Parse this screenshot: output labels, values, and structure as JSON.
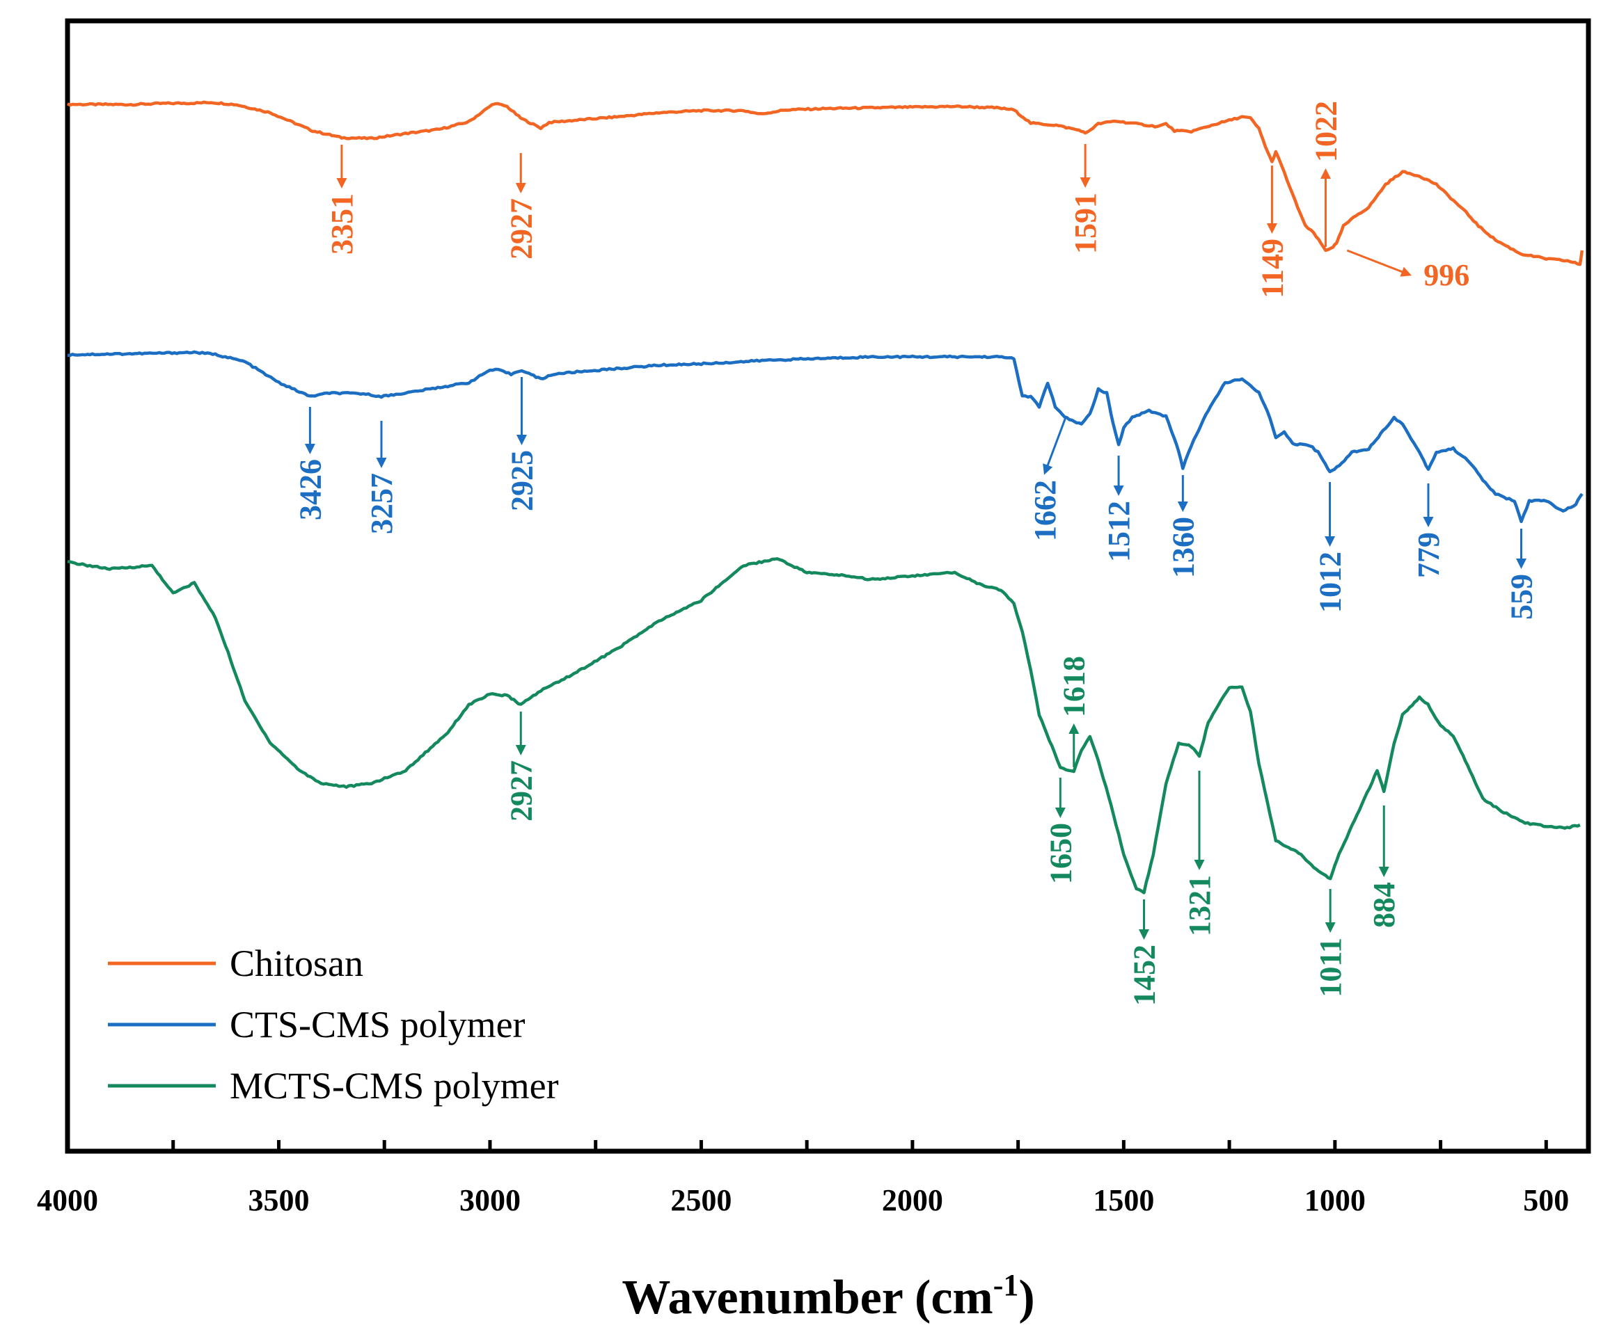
{
  "chart_data": {
    "type": "line",
    "title": "",
    "xlabel_main": "Wavenumber (cm",
    "xlabel_sup": "-1",
    "xlabel_close": ")",
    "xlim": [
      4000,
      400
    ],
    "ylabel": "",
    "xticks": [
      {
        "value": 4000,
        "label": "4000"
      },
      {
        "value": 3500,
        "label": "3500"
      },
      {
        "value": 3000,
        "label": "3000"
      },
      {
        "value": 2500,
        "label": "2500"
      },
      {
        "value": 2000,
        "label": "2000"
      },
      {
        "value": 1500,
        "label": "1500"
      },
      {
        "value": 1000,
        "label": "1000"
      },
      {
        "value": 500,
        "label": "500"
      }
    ],
    "legend_position": "bottom-left",
    "series": [
      {
        "name": "Chitosan",
        "color": "#F26522",
        "points": [
          [
            4000,
            0.0
          ],
          [
            3850,
            -0.3
          ],
          [
            3780,
            1.2
          ],
          [
            3700,
            1.8
          ],
          [
            3660,
            2.8
          ],
          [
            3600,
            -0.5
          ],
          [
            3520,
            -12
          ],
          [
            3420,
            -38
          ],
          [
            3351,
            -48
          ],
          [
            3280,
            -49
          ],
          [
            3200,
            -42
          ],
          [
            3120,
            -36
          ],
          [
            3050,
            -25
          ],
          [
            2990,
            1.5
          ],
          [
            2960,
            -3
          ],
          [
            2927,
            -20
          ],
          [
            2880,
            -34
          ],
          [
            2860,
            -26
          ],
          [
            2800,
            -23
          ],
          [
            2700,
            -18
          ],
          [
            2600,
            -12
          ],
          [
            2500,
            -9
          ],
          [
            2400,
            -9
          ],
          [
            2360,
            -14
          ],
          [
            2300,
            -8
          ],
          [
            2200,
            -6
          ],
          [
            2100,
            -5
          ],
          [
            2000,
            -4
          ],
          [
            1900,
            -3
          ],
          [
            1800,
            -5
          ],
          [
            1760,
            -8
          ],
          [
            1720,
            -27
          ],
          [
            1660,
            -30
          ],
          [
            1600,
            -38
          ],
          [
            1591,
            -42
          ],
          [
            1560,
            -28
          ],
          [
            1520,
            -24
          ],
          [
            1470,
            -28
          ],
          [
            1420,
            -32
          ],
          [
            1400,
            -28
          ],
          [
            1380,
            -38
          ],
          [
            1340,
            -39
          ],
          [
            1280,
            -28
          ],
          [
            1220,
            -18
          ],
          [
            1200,
            -20
          ],
          [
            1180,
            -35
          ],
          [
            1165,
            -60
          ],
          [
            1149,
            -83
          ],
          [
            1140,
            -68
          ],
          [
            1120,
            -98
          ],
          [
            1100,
            -130
          ],
          [
            1070,
            -175
          ],
          [
            1050,
            -185
          ],
          [
            1022,
            -210
          ],
          [
            1005,
            -205
          ],
          [
            996,
            -200
          ],
          [
            980,
            -175
          ],
          [
            950,
            -160
          ],
          [
            920,
            -148
          ],
          [
            880,
            -115
          ],
          [
            840,
            -97
          ],
          [
            800,
            -103
          ],
          [
            760,
            -115
          ],
          [
            720,
            -138
          ],
          [
            690,
            -155
          ],
          [
            660,
            -175
          ],
          [
            620,
            -195
          ],
          [
            560,
            -215
          ],
          [
            500,
            -222
          ],
          [
            450,
            -225
          ],
          [
            420,
            -230
          ],
          [
            415,
            -210
          ]
        ],
        "annotations": [
          {
            "label": "3351",
            "x": 3351
          },
          {
            "label": "2927",
            "x": 2927
          },
          {
            "label": "1591",
            "x": 1591
          },
          {
            "label": "1149",
            "x": 1149
          },
          {
            "label": "1022",
            "x": 1022
          },
          {
            "label": "996",
            "x": 996
          }
        ]
      },
      {
        "name": "CTS-CMS polymer",
        "color": "#1B6EC2",
        "points": [
          [
            4000,
            0.0
          ],
          [
            3900,
            1.0
          ],
          [
            3800,
            2.0
          ],
          [
            3700,
            3.5
          ],
          [
            3650,
            0.5
          ],
          [
            3580,
            -10
          ],
          [
            3500,
            -40
          ],
          [
            3426,
            -60
          ],
          [
            3380,
            -55
          ],
          [
            3300,
            -56
          ],
          [
            3257,
            -60
          ],
          [
            3200,
            -55
          ],
          [
            3100,
            -45
          ],
          [
            3050,
            -40
          ],
          [
            3000,
            -22
          ],
          [
            2980,
            -22
          ],
          [
            2950,
            -28
          ],
          [
            2925,
            -22
          ],
          [
            2880,
            -35
          ],
          [
            2850,
            -28
          ],
          [
            2800,
            -25
          ],
          [
            2700,
            -20
          ],
          [
            2600,
            -15
          ],
          [
            2500,
            -13
          ],
          [
            2400,
            -10
          ],
          [
            2350,
            -8
          ],
          [
            2300,
            -7
          ],
          [
            2200,
            -5
          ],
          [
            2100,
            -3
          ],
          [
            2000,
            -3
          ],
          [
            1900,
            -3
          ],
          [
            1800,
            -3
          ],
          [
            1760,
            -5
          ],
          [
            1740,
            -60
          ],
          [
            1720,
            -60
          ],
          [
            1700,
            -75
          ],
          [
            1680,
            -40
          ],
          [
            1662,
            -75
          ],
          [
            1640,
            -90
          ],
          [
            1600,
            -100
          ],
          [
            1580,
            -85
          ],
          [
            1560,
            -50
          ],
          [
            1540,
            -55
          ],
          [
            1525,
            -100
          ],
          [
            1512,
            -130
          ],
          [
            1500,
            -105
          ],
          [
            1480,
            -90
          ],
          [
            1440,
            -80
          ],
          [
            1420,
            -85
          ],
          [
            1400,
            -88
          ],
          [
            1380,
            -120
          ],
          [
            1365,
            -150
          ],
          [
            1360,
            -163
          ],
          [
            1340,
            -130
          ],
          [
            1300,
            -80
          ],
          [
            1260,
            -40
          ],
          [
            1220,
            -35
          ],
          [
            1200,
            -45
          ],
          [
            1180,
            -55
          ],
          [
            1160,
            -80
          ],
          [
            1140,
            -120
          ],
          [
            1120,
            -110
          ],
          [
            1100,
            -128
          ],
          [
            1060,
            -130
          ],
          [
            1040,
            -140
          ],
          [
            1012,
            -168
          ],
          [
            990,
            -160
          ],
          [
            960,
            -140
          ],
          [
            920,
            -135
          ],
          [
            880,
            -105
          ],
          [
            860,
            -90
          ],
          [
            840,
            -100
          ],
          [
            820,
            -120
          ],
          [
            800,
            -140
          ],
          [
            779,
            -165
          ],
          [
            760,
            -140
          ],
          [
            720,
            -135
          ],
          [
            680,
            -155
          ],
          [
            650,
            -180
          ],
          [
            620,
            -200
          ],
          [
            600,
            -205
          ],
          [
            575,
            -210
          ],
          [
            559,
            -240
          ],
          [
            540,
            -210
          ],
          [
            500,
            -210
          ],
          [
            460,
            -225
          ],
          [
            430,
            -215
          ],
          [
            415,
            -200
          ]
        ],
        "annotations": [
          {
            "label": "3426",
            "x": 3426
          },
          {
            "label": "3257",
            "x": 3257
          },
          {
            "label": "2925",
            "x": 2925
          },
          {
            "label": "1662",
            "x": 1662
          },
          {
            "label": "1512",
            "x": 1512
          },
          {
            "label": "1360",
            "x": 1360
          },
          {
            "label": "1012",
            "x": 1012
          },
          {
            "label": "779",
            "x": 779
          },
          {
            "label": "559",
            "x": 559
          }
        ]
      },
      {
        "name": "MCTS-CMS polymer",
        "color": "#14895E",
        "points": [
          [
            4000,
            0.0
          ],
          [
            3900,
            -10
          ],
          [
            3800,
            -5
          ],
          [
            3750,
            -45
          ],
          [
            3700,
            -30
          ],
          [
            3650,
            -80
          ],
          [
            3620,
            -130
          ],
          [
            3580,
            -200
          ],
          [
            3520,
            -260
          ],
          [
            3450,
            -300
          ],
          [
            3400,
            -318
          ],
          [
            3340,
            -323
          ],
          [
            3280,
            -318
          ],
          [
            3200,
            -300
          ],
          [
            3100,
            -245
          ],
          [
            3050,
            -205
          ],
          [
            3000,
            -190
          ],
          [
            2960,
            -192
          ],
          [
            2927,
            -205
          ],
          [
            2880,
            -185
          ],
          [
            2800,
            -160
          ],
          [
            2700,
            -125
          ],
          [
            2600,
            -85
          ],
          [
            2500,
            -55
          ],
          [
            2400,
            -5
          ],
          [
            2320,
            5
          ],
          [
            2250,
            -15
          ],
          [
            2150,
            -20
          ],
          [
            2100,
            -25
          ],
          [
            2000,
            -20
          ],
          [
            1900,
            -15
          ],
          [
            1830,
            -35
          ],
          [
            1790,
            -40
          ],
          [
            1760,
            -60
          ],
          [
            1740,
            -100
          ],
          [
            1720,
            -155
          ],
          [
            1700,
            -220
          ],
          [
            1670,
            -265
          ],
          [
            1650,
            -295
          ],
          [
            1630,
            -300
          ],
          [
            1618,
            -300
          ],
          [
            1600,
            -270
          ],
          [
            1580,
            -250
          ],
          [
            1560,
            -285
          ],
          [
            1530,
            -350
          ],
          [
            1500,
            -420
          ],
          [
            1470,
            -470
          ],
          [
            1452,
            -475
          ],
          [
            1430,
            -420
          ],
          [
            1400,
            -320
          ],
          [
            1370,
            -260
          ],
          [
            1340,
            -265
          ],
          [
            1321,
            -280
          ],
          [
            1300,
            -230
          ],
          [
            1270,
            -200
          ],
          [
            1250,
            -180
          ],
          [
            1220,
            -180
          ],
          [
            1200,
            -215
          ],
          [
            1180,
            -290
          ],
          [
            1160,
            -345
          ],
          [
            1140,
            -400
          ],
          [
            1110,
            -410
          ],
          [
            1080,
            -420
          ],
          [
            1050,
            -440
          ],
          [
            1011,
            -455
          ],
          [
            990,
            -420
          ],
          [
            960,
            -380
          ],
          [
            930,
            -340
          ],
          [
            900,
            -300
          ],
          [
            884,
            -330
          ],
          [
            860,
            -260
          ],
          [
            840,
            -220
          ],
          [
            800,
            -195
          ],
          [
            780,
            -205
          ],
          [
            750,
            -235
          ],
          [
            720,
            -250
          ],
          [
            680,
            -300
          ],
          [
            650,
            -340
          ],
          [
            600,
            -360
          ],
          [
            550,
            -375
          ],
          [
            500,
            -380
          ],
          [
            450,
            -382
          ],
          [
            420,
            -378
          ]
        ],
        "annotations": [
          {
            "label": "2927",
            "x": 2927
          },
          {
            "label": "1618",
            "x": 1618
          },
          {
            "label": "1650",
            "x": 1650
          },
          {
            "label": "1452",
            "x": 1452
          },
          {
            "label": "1321",
            "x": 1321
          },
          {
            "label": "1011",
            "x": 1011
          },
          {
            "label": "884",
            "x": 884
          }
        ]
      }
    ]
  }
}
